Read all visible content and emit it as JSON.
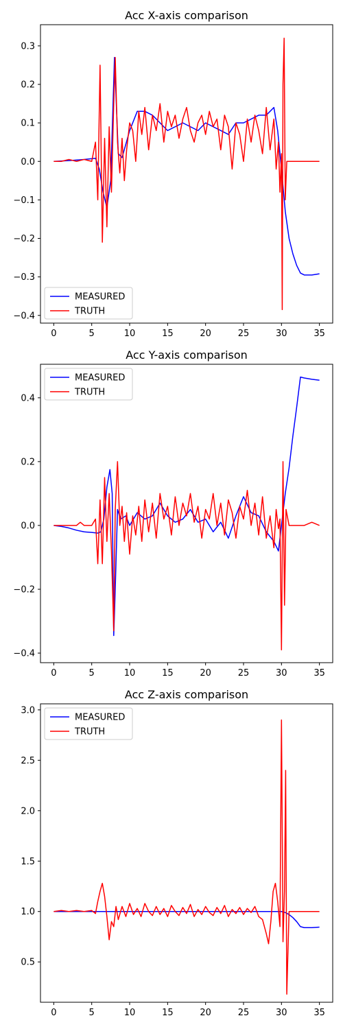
{
  "chart_data": [
    {
      "type": "line",
      "title": "Acc X-axis comparison",
      "xlim": [
        -1.75,
        36.75
      ],
      "ylim": [
        -0.42,
        0.355
      ],
      "xticks": [
        0,
        5,
        10,
        15,
        20,
        25,
        30,
        35
      ],
      "yticks": [
        -0.4,
        -0.3,
        -0.2,
        -0.1,
        0.0,
        0.1,
        0.2,
        0.3
      ],
      "ytick_labels": [
        "−0.4",
        "−0.3",
        "−0.2",
        "−0.1",
        "0.0",
        "0.1",
        "0.2",
        "0.3"
      ],
      "legend": "lower-left",
      "series": [
        {
          "name": "MEASURED",
          "color": "#0000ff",
          "x": [
            0,
            2,
            4,
            5.5,
            6,
            6.5,
            7,
            7.5,
            8,
            8.5,
            9,
            10,
            11,
            12,
            13,
            14,
            15,
            16,
            17,
            18,
            19,
            20,
            21,
            22,
            23,
            24,
            25,
            26,
            27,
            28,
            29,
            29.5,
            30,
            30.5,
            31,
            31.5,
            32,
            32.5,
            33,
            34,
            35
          ],
          "y": [
            0,
            0.002,
            0.005,
            0.008,
            -0.02,
            -0.08,
            -0.12,
            -0.05,
            0.27,
            0.02,
            0.01,
            0.08,
            0.13,
            0.13,
            0.12,
            0.1,
            0.08,
            0.09,
            0.1,
            0.09,
            0.08,
            0.1,
            0.09,
            0.08,
            0.07,
            0.1,
            0.1,
            0.11,
            0.12,
            0.12,
            0.14,
            0.08,
            -0.02,
            -0.13,
            -0.2,
            -0.24,
            -0.27,
            -0.29,
            -0.295,
            -0.295,
            -0.292
          ]
        },
        {
          "name": "TRUTH",
          "color": "#ff0000",
          "x": [
            0,
            1,
            2,
            3,
            4,
            5,
            5.5,
            5.8,
            6.1,
            6.4,
            6.7,
            7.0,
            7.3,
            7.6,
            7.9,
            8.1,
            8.4,
            8.7,
            9.0,
            9.3,
            9.6,
            10.0,
            10.4,
            10.8,
            11.2,
            11.6,
            12.0,
            12.5,
            13.0,
            13.5,
            14.0,
            14.5,
            15.0,
            15.5,
            16.0,
            16.5,
            17.0,
            17.5,
            18.0,
            18.5,
            19.0,
            19.5,
            20.0,
            20.5,
            21.0,
            21.5,
            22.0,
            22.5,
            23.0,
            23.5,
            24.0,
            24.5,
            25.0,
            25.5,
            26.0,
            26.5,
            27.0,
            27.5,
            28.0,
            28.5,
            29.0,
            29.3,
            29.6,
            29.8,
            30.0,
            30.1,
            30.2,
            30.35,
            30.5,
            30.7,
            31.0,
            32,
            33,
            34,
            35
          ],
          "y": [
            0,
            0,
            0.005,
            0,
            0.005,
            0,
            0.05,
            -0.1,
            0.25,
            -0.21,
            0.06,
            -0.17,
            0.09,
            -0.08,
            0.15,
            0.27,
            0.05,
            -0.03,
            0.06,
            -0.05,
            0.03,
            0.1,
            0.08,
            0.0,
            0.13,
            0.07,
            0.14,
            0.03,
            0.12,
            0.08,
            0.15,
            0.05,
            0.13,
            0.09,
            0.12,
            0.06,
            0.11,
            0.14,
            0.08,
            0.05,
            0.1,
            0.12,
            0.07,
            0.13,
            0.09,
            0.11,
            0.03,
            0.12,
            0.09,
            -0.02,
            0.1,
            0.07,
            0.0,
            0.11,
            0.05,
            0.12,
            0.08,
            0.02,
            0.14,
            0.03,
            0.11,
            -0.02,
            0.05,
            -0.08,
            0.02,
            -0.385,
            0.2,
            0.32,
            -0.1,
            0.0,
            0.0,
            0.0,
            0.0,
            0.0,
            0.0
          ]
        }
      ]
    },
    {
      "type": "line",
      "title": "Acc Y-axis comparison",
      "xlim": [
        -1.75,
        36.75
      ],
      "ylim": [
        -0.43,
        0.505
      ],
      "xticks": [
        0,
        5,
        10,
        15,
        20,
        25,
        30,
        35
      ],
      "yticks": [
        -0.4,
        -0.2,
        0.0,
        0.2,
        0.4
      ],
      "ytick_labels": [
        "−0.4",
        "−0.2",
        "0.0",
        "0.2",
        "0.4"
      ],
      "legend": "upper-left",
      "series": [
        {
          "name": "MEASURED",
          "color": "#0000ff",
          "x": [
            0,
            1,
            2,
            3,
            4,
            5,
            5.8,
            6.2,
            6.6,
            7.0,
            7.4,
            7.7,
            7.9,
            8.1,
            8.4,
            8.8,
            9.5,
            10,
            11,
            12,
            13,
            14,
            15,
            16,
            17,
            18,
            19,
            20,
            21,
            22,
            23,
            24,
            25,
            26,
            27,
            28,
            29,
            29.6,
            30,
            30.5,
            31,
            31.5,
            32,
            32.5,
            33,
            34,
            35
          ],
          "y": [
            0,
            -0.003,
            -0.008,
            -0.015,
            -0.02,
            -0.022,
            -0.024,
            -0.02,
            0.02,
            0.12,
            0.175,
            0.1,
            -0.345,
            -0.2,
            0.05,
            0.02,
            0.03,
            0.0,
            0.04,
            0.02,
            0.03,
            0.07,
            0.03,
            0.01,
            0.02,
            0.05,
            0.01,
            0.02,
            -0.02,
            0.01,
            -0.04,
            0.03,
            0.09,
            0.04,
            0.03,
            -0.02,
            -0.05,
            -0.08,
            0.0,
            0.1,
            0.18,
            0.28,
            0.37,
            0.465,
            0.462,
            0.458,
            0.455
          ]
        },
        {
          "name": "TRUTH",
          "color": "#ff0000",
          "x": [
            0,
            1,
            2,
            3,
            3.5,
            4,
            5,
            5.5,
            5.8,
            6.1,
            6.4,
            6.7,
            7.0,
            7.3,
            7.6,
            7.9,
            8.1,
            8.4,
            8.7,
            9.0,
            9.3,
            9.6,
            10.0,
            10.4,
            10.8,
            11.2,
            11.6,
            12.0,
            12.5,
            13.0,
            13.5,
            14.0,
            14.5,
            15.0,
            15.5,
            16.0,
            16.5,
            17.0,
            17.5,
            18.0,
            18.5,
            19.0,
            19.5,
            20.0,
            20.5,
            21.0,
            21.5,
            22.0,
            22.5,
            23.0,
            23.5,
            24.0,
            24.5,
            25.0,
            25.5,
            26.0,
            26.5,
            27.0,
            27.5,
            28.0,
            28.5,
            29.0,
            29.3,
            29.6,
            29.8,
            30.0,
            30.2,
            30.4,
            30.6,
            31.0,
            32,
            33,
            34,
            35
          ],
          "y": [
            0,
            0,
            0,
            0,
            0.01,
            0,
            0,
            0.02,
            -0.12,
            0.08,
            -0.12,
            0.15,
            -0.05,
            0.1,
            -0.08,
            -0.33,
            0.05,
            0.2,
            0.0,
            0.06,
            -0.05,
            0.04,
            -0.09,
            0.03,
            -0.03,
            0.06,
            -0.05,
            0.08,
            -0.02,
            0.07,
            -0.04,
            0.1,
            0.02,
            0.06,
            -0.03,
            0.09,
            0.0,
            0.07,
            0.03,
            0.1,
            0.01,
            0.06,
            -0.04,
            0.05,
            0.02,
            0.1,
            0.0,
            0.07,
            -0.03,
            0.08,
            0.04,
            -0.04,
            0.06,
            0.02,
            0.11,
            0.0,
            0.07,
            -0.03,
            0.09,
            -0.04,
            0.03,
            -0.07,
            0.05,
            -0.01,
            0.02,
            -0.39,
            0.2,
            -0.25,
            0.05,
            0.0,
            0.0,
            0.0,
            0.01,
            0.0
          ]
        }
      ]
    },
    {
      "type": "line",
      "title": "Acc Z-axis comparison",
      "xlim": [
        -1.75,
        36.75
      ],
      "ylim": [
        0.1,
        3.06
      ],
      "xticks": [
        0,
        5,
        10,
        15,
        20,
        25,
        30,
        35
      ],
      "yticks": [
        0.5,
        1.0,
        1.5,
        2.0,
        2.5,
        3.0
      ],
      "ytick_labels": [
        "0.5",
        "1.0",
        "1.5",
        "2.0",
        "2.5",
        "3.0"
      ],
      "legend": "upper-left",
      "series": [
        {
          "name": "MEASURED",
          "color": "#0000ff",
          "x": [
            0,
            5,
            6,
            8,
            10,
            15,
            20,
            25,
            28,
            29,
            30,
            30.5,
            31,
            31.5,
            32,
            32.5,
            33,
            34,
            35
          ],
          "y": [
            1.0,
            1.0,
            1.0,
            1.0,
            1.0,
            1.0,
            1.0,
            1.0,
            1.0,
            1.0,
            1.0,
            0.99,
            0.97,
            0.94,
            0.9,
            0.85,
            0.84,
            0.84,
            0.845
          ]
        },
        {
          "name": "TRUTH",
          "color": "#ff0000",
          "x": [
            0,
            1,
            2,
            3,
            4,
            5,
            5.5,
            5.8,
            6.1,
            6.4,
            6.7,
            7.0,
            7.3,
            7.6,
            7.9,
            8.2,
            8.5,
            9.0,
            9.5,
            10.0,
            10.5,
            11.0,
            11.5,
            12.0,
            12.5,
            13.0,
            13.5,
            14.0,
            14.5,
            15.0,
            15.5,
            16.0,
            16.5,
            17.0,
            17.5,
            18.0,
            18.5,
            19.0,
            19.5,
            20.0,
            20.5,
            21.0,
            21.5,
            22.0,
            22.5,
            23.0,
            23.5,
            24.0,
            24.5,
            25.0,
            25.5,
            26.0,
            26.5,
            27.0,
            27.5,
            28.0,
            28.3,
            28.6,
            28.9,
            29.2,
            29.5,
            29.8,
            30.0,
            30.2,
            30.4,
            30.55,
            30.7,
            31.0,
            32,
            33,
            34,
            35
          ],
          "y": [
            1.0,
            1.01,
            1.0,
            1.01,
            1.0,
            1.01,
            0.98,
            1.1,
            1.2,
            1.28,
            1.15,
            0.95,
            0.72,
            0.9,
            0.85,
            1.05,
            0.92,
            1.05,
            0.95,
            1.08,
            0.97,
            1.03,
            0.95,
            1.08,
            1.0,
            0.96,
            1.05,
            0.97,
            1.03,
            0.95,
            1.06,
            1.0,
            0.96,
            1.04,
            0.98,
            1.07,
            0.95,
            1.02,
            0.97,
            1.05,
            0.99,
            0.96,
            1.04,
            0.98,
            1.06,
            0.95,
            1.02,
            0.98,
            1.04,
            0.97,
            1.03,
            0.99,
            1.05,
            0.95,
            0.92,
            0.78,
            0.68,
            0.9,
            1.2,
            1.28,
            1.1,
            0.85,
            2.9,
            0.7,
            1.2,
            2.4,
            0.18,
            1.0,
            1.0,
            1.0,
            1.0,
            1.0
          ]
        }
      ]
    }
  ]
}
